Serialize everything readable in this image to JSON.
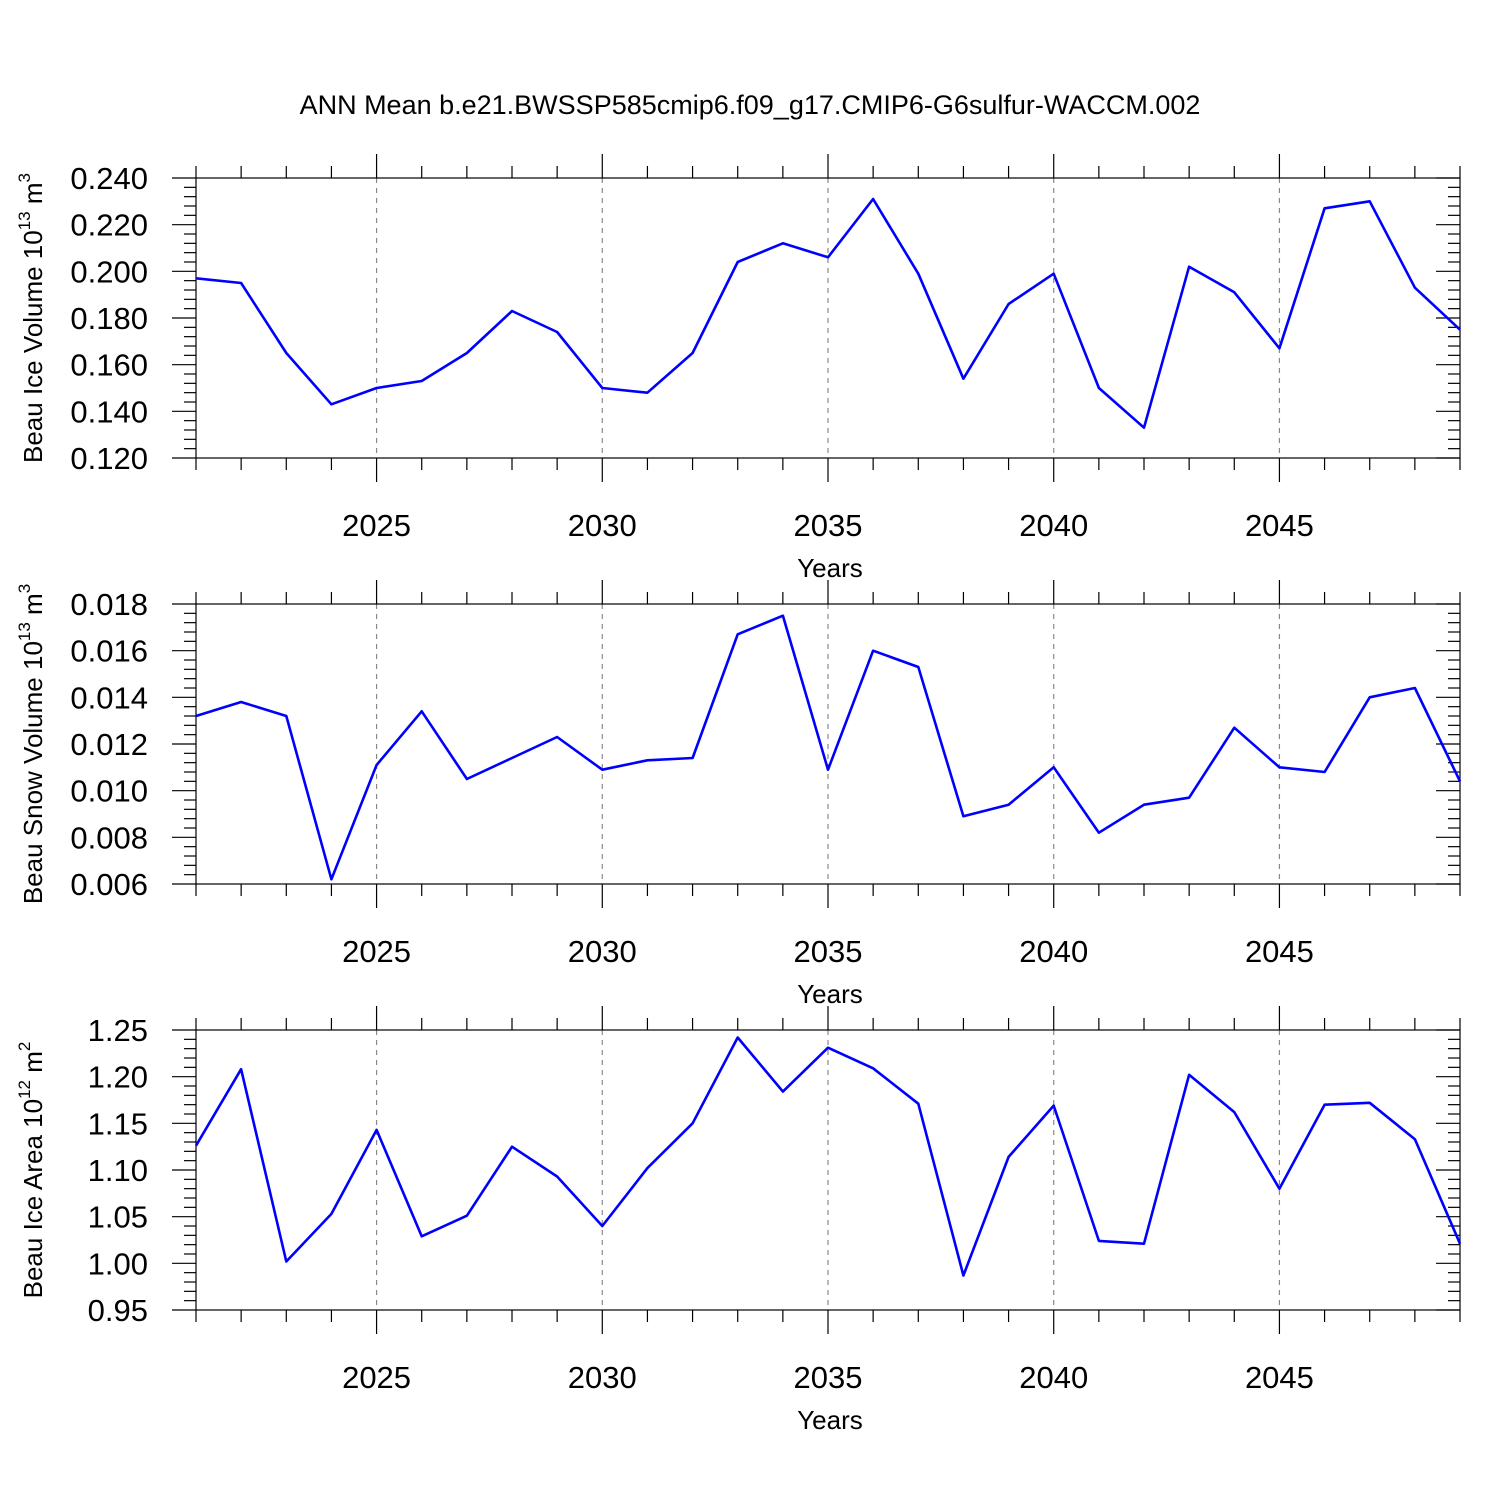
{
  "title": "ANN Mean b.e21.BWSSP585cmip6.f09_g17.CMIP6-G6sulfur-WACCM.002",
  "colors": {
    "series": "#0000ff",
    "grid": "#888888",
    "frame": "#000000"
  },
  "chart_data": [
    {
      "type": "line",
      "ylabel": {
        "text": "Beau Ice Volume 10",
        "sup": "13",
        "unit": " m",
        "unit_sup": "3"
      },
      "xlabel": "Years",
      "xlim": [
        2021,
        2049
      ],
      "ylim": [
        0.12,
        0.24
      ],
      "xticks": [
        2025,
        2030,
        2035,
        2040,
        2045
      ],
      "yticks": [
        0.12,
        0.14,
        0.16,
        0.18,
        0.2,
        0.22,
        0.24
      ],
      "ytick_labels": [
        "0.120",
        "0.140",
        "0.160",
        "0.180",
        "0.200",
        "0.220",
        "0.240"
      ],
      "grid": "vertical dashed at major x ticks",
      "x": [
        2021,
        2022,
        2023,
        2024,
        2025,
        2026,
        2027,
        2028,
        2029,
        2030,
        2031,
        2032,
        2033,
        2034,
        2035,
        2036,
        2037,
        2038,
        2039,
        2040,
        2041,
        2042,
        2043,
        2044,
        2045,
        2046,
        2047,
        2048,
        2049
      ],
      "values": [
        0.197,
        0.195,
        0.165,
        0.143,
        0.15,
        0.153,
        0.165,
        0.183,
        0.174,
        0.15,
        0.148,
        0.165,
        0.204,
        0.212,
        0.206,
        0.231,
        0.199,
        0.154,
        0.186,
        0.199,
        0.15,
        0.133,
        0.202,
        0.191,
        0.167,
        0.227,
        0.23,
        0.193,
        0.175
      ]
    },
    {
      "type": "line",
      "ylabel": {
        "text": "Beau Snow Volume 10",
        "sup": "13",
        "unit": " m",
        "unit_sup": "3"
      },
      "xlabel": "Years",
      "xlim": [
        2021,
        2049
      ],
      "ylim": [
        0.006,
        0.018
      ],
      "xticks": [
        2025,
        2030,
        2035,
        2040,
        2045
      ],
      "yticks": [
        0.006,
        0.008,
        0.01,
        0.012,
        0.014,
        0.016,
        0.018
      ],
      "ytick_labels": [
        "0.006",
        "0.008",
        "0.010",
        "0.012",
        "0.014",
        "0.016",
        "0.018"
      ],
      "grid": "vertical dashed at major x ticks",
      "x": [
        2021,
        2022,
        2023,
        2024,
        2025,
        2026,
        2027,
        2028,
        2029,
        2030,
        2031,
        2032,
        2033,
        2034,
        2035,
        2036,
        2037,
        2038,
        2039,
        2040,
        2041,
        2042,
        2043,
        2044,
        2045,
        2046,
        2047,
        2048,
        2049
      ],
      "values": [
        0.0132,
        0.0138,
        0.0132,
        0.0062,
        0.0111,
        0.0134,
        0.0105,
        0.0114,
        0.0123,
        0.0109,
        0.0113,
        0.0114,
        0.0167,
        0.0175,
        0.0109,
        0.016,
        0.0153,
        0.0089,
        0.0094,
        0.011,
        0.0082,
        0.0094,
        0.0097,
        0.0127,
        0.011,
        0.0108,
        0.014,
        0.0144,
        0.0104
      ]
    },
    {
      "type": "line",
      "ylabel": {
        "text": "Beau Ice Area 10",
        "sup": "12",
        "unit": " m",
        "unit_sup": "2"
      },
      "xlabel": "Years",
      "xlim": [
        2021,
        2049
      ],
      "ylim": [
        0.95,
        1.25
      ],
      "xticks": [
        2025,
        2030,
        2035,
        2040,
        2045
      ],
      "yticks": [
        0.95,
        1.0,
        1.05,
        1.1,
        1.15,
        1.2,
        1.25
      ],
      "ytick_labels": [
        "0.95",
        "1.00",
        "1.05",
        "1.10",
        "1.15",
        "1.20",
        "1.25"
      ],
      "grid": "vertical dashed at major x ticks",
      "x": [
        2021,
        2022,
        2023,
        2024,
        2025,
        2026,
        2027,
        2028,
        2029,
        2030,
        2031,
        2032,
        2033,
        2034,
        2035,
        2036,
        2037,
        2038,
        2039,
        2040,
        2041,
        2042,
        2043,
        2044,
        2045,
        2046,
        2047,
        2048,
        2049
      ],
      "values": [
        1.126,
        1.208,
        1.002,
        1.053,
        1.143,
        1.029,
        1.051,
        1.125,
        1.093,
        1.04,
        1.102,
        1.15,
        1.242,
        1.184,
        1.231,
        1.209,
        1.171,
        0.987,
        1.114,
        1.169,
        1.024,
        1.021,
        1.202,
        1.162,
        1.08,
        1.17,
        1.172,
        1.133,
        1.021
      ]
    }
  ]
}
